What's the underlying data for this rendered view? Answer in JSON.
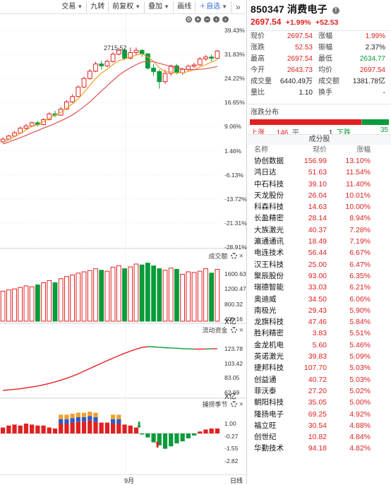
{
  "toolbar": {
    "items": [
      "交易",
      "九转",
      "前复权",
      "叠加",
      "画线",
      "自选"
    ],
    "expand": "»"
  },
  "chart": {
    "high_mark": "2715.52",
    "kline_axis": [
      "39.43%",
      "31.83%",
      "24.22%",
      "16.65%",
      "9.06%",
      "1.46%",
      "-6.13%",
      "-13.72%",
      "-21.31%",
      "-28.91%"
    ],
    "volume_title": "成交额",
    "volume_axis": [
      "1600.63",
      "1200.47",
      "800.32",
      "400.16"
    ],
    "volume_unit": "X亿",
    "flow_title": "流动资金",
    "flow_axis": [
      "123.78",
      "103.42",
      "83.05",
      "62.69"
    ],
    "flow_unit": "X亿",
    "season_title": "捕捞季节",
    "season_axis": [
      "1.00",
      "-0.27",
      "-1.55",
      "-2.82"
    ],
    "month_label": "9月",
    "period": "日线",
    "candles": [
      {
        "o": 4.2,
        "c": 5.0,
        "h": 5.6,
        "l": 3.8
      },
      {
        "o": 5.0,
        "c": 6.0,
        "h": 6.4,
        "l": 4.8
      },
      {
        "o": 6.0,
        "c": 7.0,
        "h": 7.6,
        "l": 5.7
      },
      {
        "o": 7.0,
        "c": 8.5,
        "h": 9.0,
        "l": 6.8
      },
      {
        "o": 8.5,
        "c": 9.2,
        "h": 9.9,
        "l": 8.0
      },
      {
        "o": 9.2,
        "c": 10.2,
        "h": 10.6,
        "l": 8.9
      },
      {
        "o": 10.2,
        "c": 9.6,
        "h": 10.8,
        "l": 9.0
      },
      {
        "o": 9.6,
        "c": 11.2,
        "h": 11.6,
        "l": 9.4
      },
      {
        "o": 11.2,
        "c": 13.0,
        "h": 13.6,
        "l": 11.0
      },
      {
        "o": 13.0,
        "c": 12.6,
        "h": 14.0,
        "l": 12.0
      },
      {
        "o": 12.6,
        "c": 14.5,
        "h": 15.2,
        "l": 12.4
      },
      {
        "o": 14.5,
        "c": 16.8,
        "h": 17.4,
        "l": 14.3
      },
      {
        "o": 16.8,
        "c": 18.5,
        "h": 19.2,
        "l": 16.5
      },
      {
        "o": 18.5,
        "c": 21.5,
        "h": 22.0,
        "l": 18.3
      },
      {
        "o": 21.5,
        "c": 24.2,
        "h": 24.8,
        "l": 21.2
      },
      {
        "o": 24.2,
        "c": 26.5,
        "h": 27.2,
        "l": 23.8
      },
      {
        "o": 26.5,
        "c": 28.8,
        "h": 29.5,
        "l": 26.2
      },
      {
        "o": 28.8,
        "c": 28.2,
        "h": 29.8,
        "l": 27.0
      },
      {
        "o": 28.2,
        "c": 29.6,
        "h": 30.2,
        "l": 27.8
      },
      {
        "o": 29.6,
        "c": 31.9,
        "h": 32.6,
        "l": 29.2
      },
      {
        "o": 31.9,
        "c": 33.1,
        "h": 33.9,
        "l": 31.5
      },
      {
        "o": 33.1,
        "c": 30.6,
        "h": 33.6,
        "l": 30.0
      },
      {
        "o": 30.6,
        "c": 32.4,
        "h": 34.0,
        "l": 30.2
      },
      {
        "o": 32.4,
        "c": 33.1,
        "h": 34.0,
        "l": 31.6
      },
      {
        "o": 33.1,
        "c": 32.0,
        "h": 33.5,
        "l": 31.0
      },
      {
        "o": 32.0,
        "c": 27.5,
        "h": 32.2,
        "l": 27.0
      },
      {
        "o": 27.5,
        "c": 26.4,
        "h": 28.8,
        "l": 25.0
      },
      {
        "o": 26.4,
        "c": 23.2,
        "h": 27.0,
        "l": 21.0
      },
      {
        "o": 23.2,
        "c": 25.8,
        "h": 27.0,
        "l": 22.5
      },
      {
        "o": 25.8,
        "c": 28.2,
        "h": 28.6,
        "l": 25.0
      },
      {
        "o": 28.2,
        "c": 26.0,
        "h": 28.8,
        "l": 25.6
      },
      {
        "o": 26.0,
        "c": 27.1,
        "h": 27.6,
        "l": 25.4
      },
      {
        "o": 27.1,
        "c": 28.1,
        "h": 28.6,
        "l": 26.6
      },
      {
        "o": 28.1,
        "c": 28.5,
        "h": 29.2,
        "l": 27.6
      },
      {
        "o": 28.5,
        "c": 30.4,
        "h": 31.0,
        "l": 28.2
      },
      {
        "o": 30.4,
        "c": 31.0,
        "h": 31.6,
        "l": 29.8
      },
      {
        "o": 31.0,
        "c": 30.6,
        "h": 31.8,
        "l": 29.6
      },
      {
        "o": 30.6,
        "c": 32.9,
        "h": 33.2,
        "l": 30.4
      }
    ],
    "ma5": [
      4.0,
      4.8,
      5.8,
      6.8,
      7.9,
      9.0,
      9.6,
      10.5,
      11.6,
      12.6,
      13.5,
      14.8,
      16.2,
      17.8,
      19.8,
      22.0,
      24.2,
      25.9,
      27.2,
      28.6,
      29.8,
      30.4,
      30.9,
      31.6,
      32.0,
      31.0,
      29.6,
      27.6,
      26.3,
      26.3,
      26.0,
      26.0,
      26.4,
      27.0,
      27.8,
      28.6,
      29.4,
      30.2
    ],
    "ma10": [
      3.5,
      4.1,
      4.8,
      5.5,
      6.2,
      7.0,
      7.7,
      8.5,
      9.2,
      10.0,
      10.8,
      11.7,
      12.7,
      13.9,
      15.3,
      16.8,
      18.5,
      20.2,
      21.9,
      23.6,
      25.2,
      26.5,
      27.6,
      28.6,
      29.4,
      29.6,
      29.5,
      29.0,
      28.5,
      28.0,
      27.6,
      27.2,
      27.0,
      27.0,
      27.1,
      27.3,
      27.6,
      28.0
    ],
    "volumes": [
      980,
      1020,
      1050,
      1100,
      1150,
      1120,
      1180,
      1250,
      1320,
      1250,
      1380,
      1450,
      1500,
      1560,
      1600,
      1640,
      1700,
      1650,
      1620,
      1750,
      1800,
      1700,
      1760,
      1850,
      1820,
      1880,
      1790,
      1700,
      1650,
      1720,
      1680,
      1520,
      1600,
      1580,
      1620,
      1700,
      1560,
      1680
    ],
    "volume_colors": [
      "r",
      "r",
      "r",
      "r",
      "r",
      "r",
      "g",
      "r",
      "r",
      "g",
      "r",
      "r",
      "r",
      "r",
      "r",
      "r",
      "r",
      "g",
      "r",
      "r",
      "r",
      "g",
      "r",
      "r",
      "g",
      "g",
      "g",
      "g",
      "r",
      "r",
      "g",
      "r",
      "r",
      "r",
      "r",
      "r",
      "g",
      "r"
    ],
    "flow": [
      62.69,
      63.5,
      64.2,
      65.0,
      66.2,
      67.5,
      68.8,
      70.5,
      72.4,
      74.6,
      77.0,
      79.6,
      82.5,
      85.8,
      89.5,
      93.2,
      97.0,
      100.6,
      104.2,
      107.8,
      111.2,
      114.5,
      117.5,
      120.3,
      122.6,
      123.78,
      123.4,
      122.9,
      122.3,
      121.9,
      121.5,
      121.0,
      120.6,
      120.4,
      120.3,
      120.5,
      120.8,
      120.9
    ],
    "flow_colors": [
      "r",
      "r",
      "r",
      "r",
      "r",
      "r",
      "r",
      "r",
      "r",
      "r",
      "r",
      "r",
      "r",
      "r",
      "r",
      "r",
      "r",
      "r",
      "r",
      "r",
      "r",
      "r",
      "r",
      "r",
      "r",
      "r",
      "g",
      "g",
      "g",
      "g",
      "g",
      "g",
      "g",
      "g",
      "r",
      "r",
      "g",
      "r"
    ],
    "season": [
      0.6,
      0.8,
      0.9,
      0.8,
      1.0,
      0.9,
      0.8,
      0.8,
      0.6,
      0.5,
      1.0,
      1.0,
      1.1,
      1.2,
      1.2,
      1.3,
      1.2,
      1.1,
      1.1,
      1.0,
      1.0,
      0.9,
      0.8,
      0.6,
      -0.1,
      -0.4,
      -0.9,
      -1.2,
      -1.55,
      -1.3,
      -1.0,
      -0.8,
      -0.5,
      -0.2,
      0.2,
      0.4,
      0.5,
      0.5
    ],
    "season_top": [
      0,
      0,
      0,
      0,
      0,
      0,
      0,
      0,
      0,
      0,
      1.5,
      1.5,
      1.5,
      1.5,
      1.5,
      1.5,
      1.5,
      0,
      0,
      1.6,
      1.5,
      0,
      0,
      0,
      0,
      0,
      0,
      0,
      0,
      0,
      0,
      0,
      0,
      0,
      0,
      0,
      0,
      0
    ]
  },
  "quote": {
    "code": "850347",
    "name": "消费电子",
    "price": "2697.54",
    "change_pct": "+1.99%",
    "change": "+52.53",
    "stats": [
      [
        "现价",
        "2697.54",
        "涨幅",
        "1.99%"
      ],
      [
        "涨跌",
        "52.53",
        "振幅",
        "2.37%"
      ],
      [
        "最高",
        "2697.54",
        "最低",
        "2634.77"
      ],
      [
        "今开",
        "2643.73",
        "均价",
        "2697.54"
      ],
      [
        "成交量",
        "6440.49万",
        "成交额",
        "1381.78亿"
      ],
      [
        "量比",
        "1.10",
        "换手",
        "-"
      ]
    ]
  },
  "distribution": {
    "title": "涨跌分布",
    "up_label": "上涨",
    "up": "146",
    "flat_label": "平",
    "flat": "1",
    "down_label": "下跌",
    "down": "35"
  },
  "components": {
    "title": "成分股",
    "headers": [
      "名称",
      "现价",
      "涨幅"
    ],
    "rows": [
      [
        "协创数据",
        "156.99",
        "13.10%"
      ],
      [
        "鸿日达",
        "51.63",
        "11.54%"
      ],
      [
        "中石科技",
        "39.10",
        "11.40%"
      ],
      [
        "天龙股份",
        "26.04",
        "10.01%"
      ],
      [
        "科森科技",
        "14.63",
        "10.00%"
      ],
      [
        "长盈精密",
        "28.14",
        "8.94%"
      ],
      [
        "大族激光",
        "40.37",
        "7.28%"
      ],
      [
        "瀛通通讯",
        "18.49",
        "7.19%"
      ],
      [
        "电连技术",
        "56.44",
        "6.67%"
      ],
      [
        "汉王科技",
        "25.00",
        "6.47%"
      ],
      [
        "聚辰股份",
        "93.00",
        "6.35%"
      ],
      [
        "瑞德智能",
        "33.03",
        "6.21%"
      ],
      [
        "奥迪威",
        "34.50",
        "6.06%"
      ],
      [
        "南极光",
        "29.43",
        "5.90%"
      ],
      [
        "龙旗科技",
        "47.46",
        "5.84%"
      ],
      [
        "胜利精密",
        "3.83",
        "5.51%"
      ],
      [
        "金龙机电",
        "5.60",
        "5.46%"
      ],
      [
        "英诺激光",
        "39.83",
        "5.09%"
      ],
      [
        "捷邦科技",
        "107.70",
        "5.03%"
      ],
      [
        "创益通",
        "40.72",
        "5.03%"
      ],
      [
        "菲沃泰",
        "27.20",
        "5.02%"
      ],
      [
        "朝阳科技",
        "35.05",
        "5.00%"
      ],
      [
        "隆扬电子",
        "69.25",
        "4.92%"
      ],
      [
        "福立旺",
        "30.54",
        "4.88%"
      ],
      [
        "创世纪",
        "10.82",
        "4.84%"
      ],
      [
        "华勤技术",
        "94.18",
        "4.82%"
      ]
    ]
  },
  "colors": {
    "up": "#e02020",
    "down": "#0a9b3a",
    "ma5": "#f0a020",
    "ma10": "#e05050"
  }
}
